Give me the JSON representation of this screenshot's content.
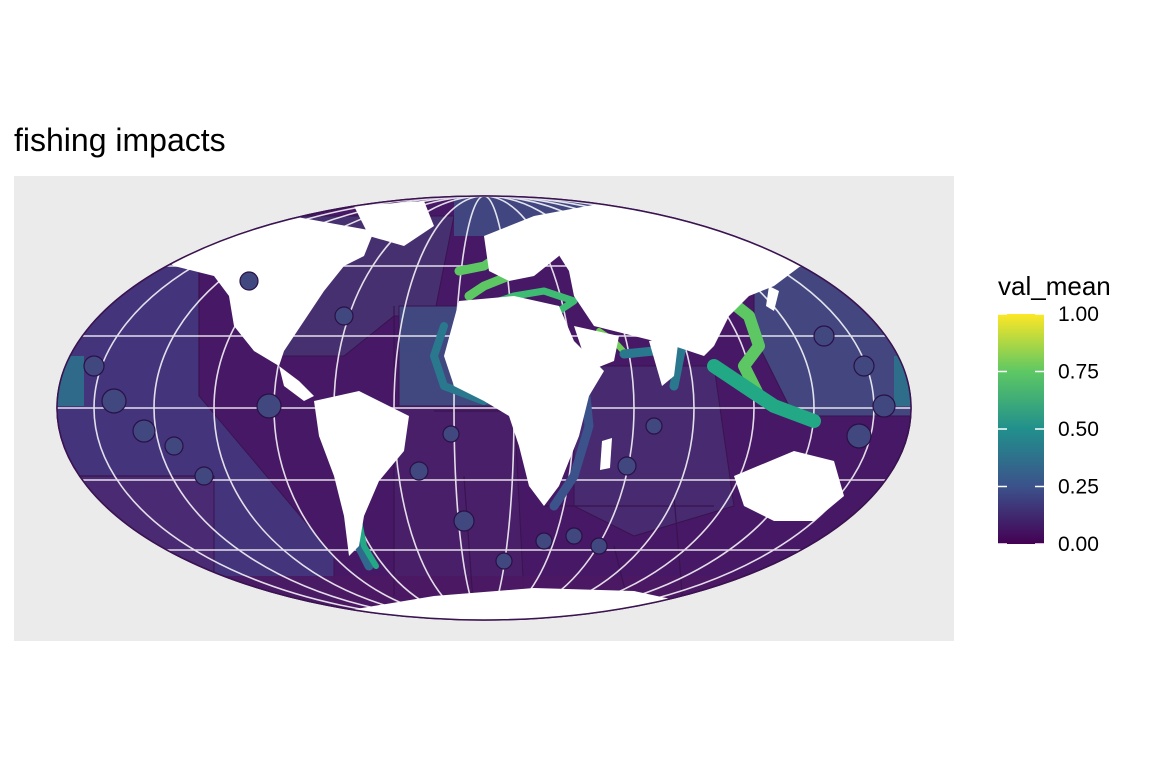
{
  "title": "fishing impacts",
  "legend": {
    "title": "val_mean",
    "ticks": [
      {
        "value": 0.0,
        "label": "0.00"
      },
      {
        "value": 0.25,
        "label": "0.25"
      },
      {
        "value": 0.5,
        "label": "0.50"
      },
      {
        "value": 0.75,
        "label": "0.75"
      },
      {
        "value": 1.0,
        "label": "1.00"
      }
    ],
    "range": [
      0,
      1
    ],
    "palette": [
      "#440154",
      "#3b528b",
      "#21908c",
      "#5dc863",
      "#fde725"
    ]
  },
  "map": {
    "projection": "Mollweide",
    "panel_background": "#ebebeb",
    "land_color": "#ffffff",
    "graticule_color": "#ffffff",
    "region_border_color": "#3a1350",
    "typical_values": {
      "open_ocean": 0.12,
      "atlantic_pacific_highseas": 0.25,
      "coastal_europe_asia": 0.75
    }
  }
}
